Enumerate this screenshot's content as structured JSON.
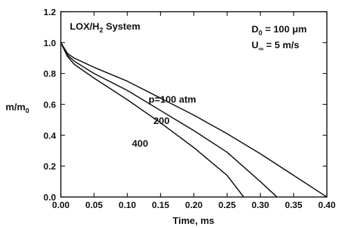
{
  "chart_data": {
    "type": "line",
    "xlabel": "Time, ms",
    "ylabel_main": "m/m",
    "ylabel_sub": "0",
    "xlim": [
      0.0,
      0.4
    ],
    "ylim": [
      0.0,
      1.2
    ],
    "x_ticks": [
      "0.00",
      "0.05",
      "0.10",
      "0.15",
      "0.20",
      "0.25",
      "0.30",
      "0.35",
      "0.40"
    ],
    "y_ticks": [
      "0.0",
      "0.2",
      "0.4",
      "0.6",
      "0.8",
      "1.0",
      "1.2"
    ],
    "grid": false,
    "series": [
      {
        "name": "p=100 atm",
        "x": [
          0.0,
          0.01,
          0.02,
          0.05,
          0.1,
          0.15,
          0.2,
          0.25,
          0.3,
          0.35,
          0.4
        ],
        "y": [
          1.0,
          0.93,
          0.9,
          0.84,
          0.75,
          0.64,
          0.53,
          0.41,
          0.28,
          0.14,
          0.0
        ]
      },
      {
        "name": "200",
        "x": [
          0.0,
          0.01,
          0.02,
          0.05,
          0.1,
          0.15,
          0.2,
          0.25,
          0.3,
          0.325
        ],
        "y": [
          1.0,
          0.92,
          0.88,
          0.8,
          0.69,
          0.56,
          0.43,
          0.29,
          0.1,
          0.0
        ]
      },
      {
        "name": "400",
        "x": [
          0.0,
          0.01,
          0.02,
          0.05,
          0.1,
          0.15,
          0.2,
          0.25,
          0.275
        ],
        "y": [
          1.0,
          0.91,
          0.86,
          0.77,
          0.63,
          0.48,
          0.32,
          0.14,
          0.0
        ]
      }
    ],
    "annotations": {
      "system_main": "LOX/H",
      "system_sub": "2",
      "system_tail": " System",
      "d0_main": "D",
      "d0_sub": "0",
      "d0_tail": " = 100 μm",
      "u_main": "U",
      "u_sub": "∞",
      "u_tail": " = 5 m/s"
    }
  }
}
